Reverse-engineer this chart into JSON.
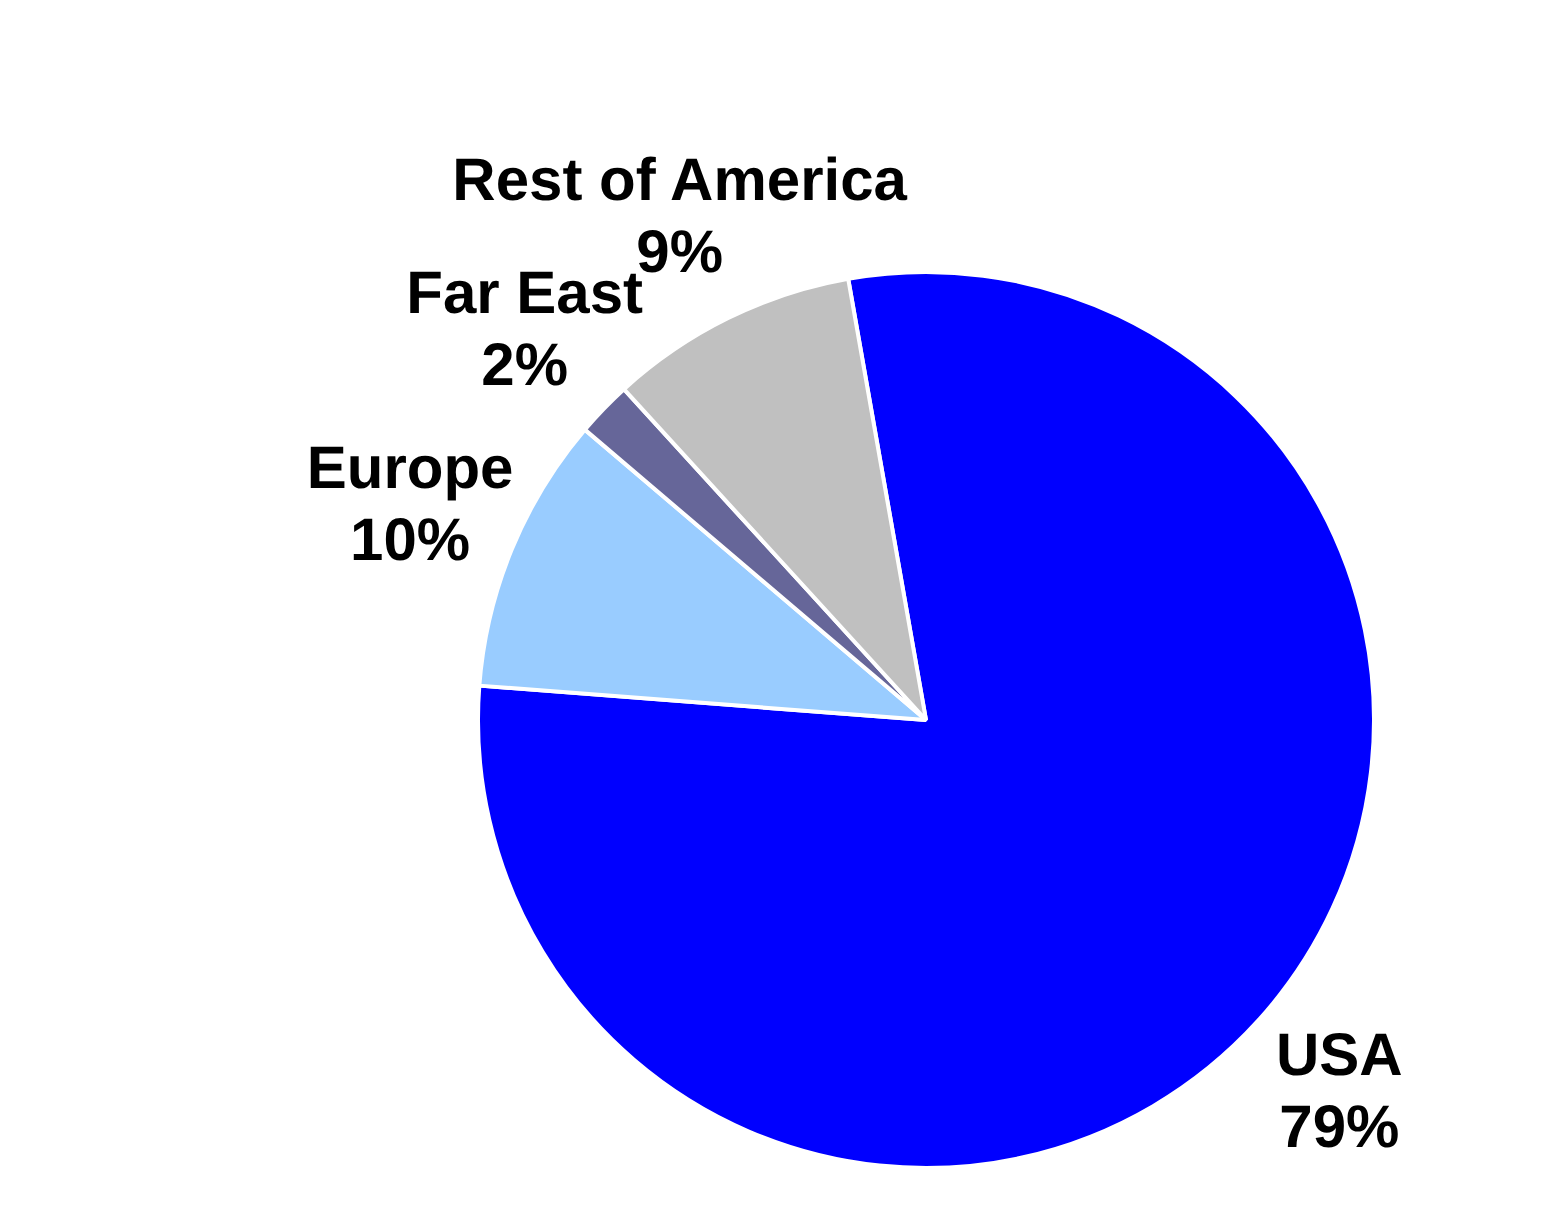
{
  "chart_data": {
    "type": "pie",
    "categories": [
      "USA",
      "Europe",
      "Far East",
      "Rest of America"
    ],
    "values": [
      79,
      10,
      2,
      9
    ],
    "value_labels": [
      "79%",
      "10%",
      "2%",
      "9%"
    ],
    "colors": [
      "#0000ff",
      "#99ccff",
      "#666699",
      "#c0c0c0"
    ],
    "legend": false
  }
}
